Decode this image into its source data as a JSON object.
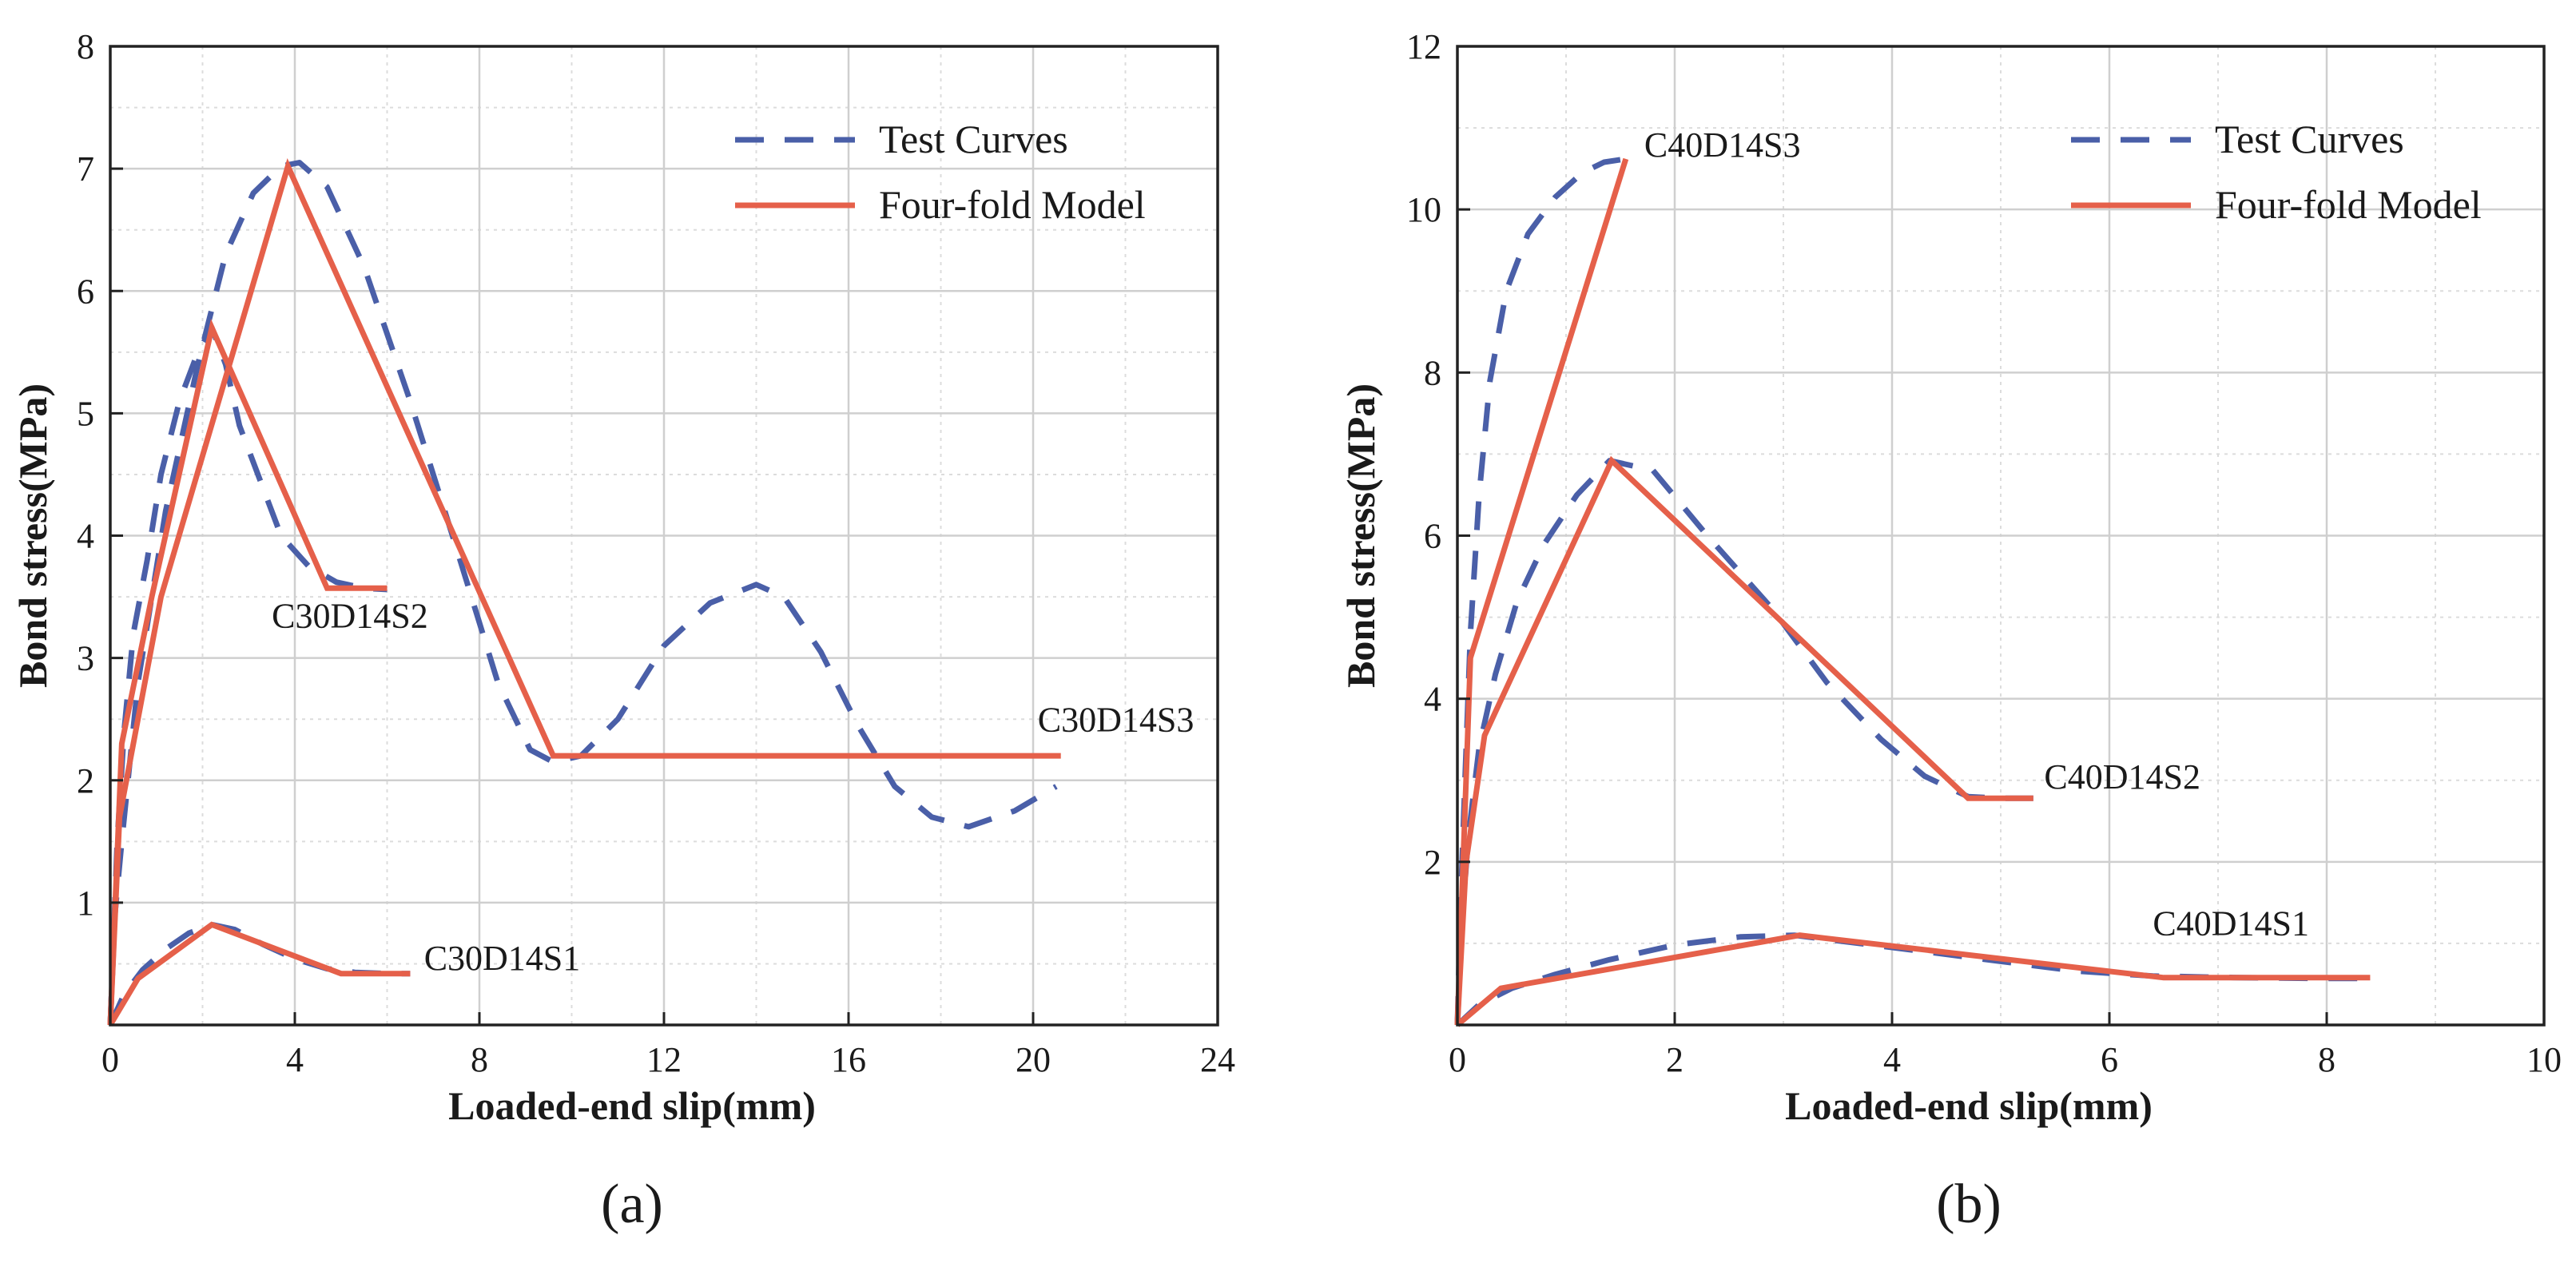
{
  "chart_data": [
    {
      "type": "line",
      "panel_label": "(a)",
      "xlabel": "Loaded-end slip(mm)",
      "ylabel": "Bond stress(MPa)",
      "xlim": [
        0,
        24
      ],
      "ylim": [
        0,
        8
      ],
      "xticks": [
        0,
        4,
        8,
        12,
        16,
        20,
        24
      ],
      "yticks": [
        1,
        2,
        3,
        4,
        5,
        6,
        7,
        8
      ],
      "grid": true,
      "legend_position": "top-right",
      "legend": [
        "Test Curves",
        "Four-fold Model"
      ],
      "colors": {
        "test": "#4a5fa8",
        "model": "#e5604a",
        "grid": "#cfcfcf"
      },
      "annotations": [
        {
          "text": "C30D14S3",
          "x": 20.1,
          "y": 2.4
        },
        {
          "text": "C30D14S2",
          "x": 3.5,
          "y": 3.25
        },
        {
          "text": "C30D14S1",
          "x": 6.8,
          "y": 0.45
        }
      ],
      "series": [
        {
          "specimen": "C30D14S1",
          "kind": "test",
          "x": [
            0,
            0.3,
            0.7,
            1.2,
            1.7,
            2.2,
            2.7,
            3.3,
            4.0,
            4.7,
            5.3,
            6.0,
            6.5
          ],
          "y": [
            0,
            0.25,
            0.45,
            0.62,
            0.75,
            0.82,
            0.78,
            0.66,
            0.54,
            0.46,
            0.43,
            0.42,
            0.42
          ]
        },
        {
          "specimen": "C30D14S1",
          "kind": "model",
          "x": [
            0,
            0.6,
            2.2,
            5.0,
            6.5
          ],
          "y": [
            0,
            0.38,
            0.82,
            0.42,
            0.42
          ]
        },
        {
          "specimen": "C30D14S2",
          "kind": "test",
          "x": [
            0,
            0.15,
            0.3,
            0.5,
            0.8,
            1.1,
            1.5,
            1.9,
            2.2,
            2.5,
            2.8,
            3.2,
            3.7,
            4.3,
            4.9,
            5.5,
            6.0
          ],
          "y": [
            0,
            1.5,
            2.4,
            3.2,
            3.8,
            4.5,
            5.1,
            5.5,
            5.7,
            5.4,
            4.9,
            4.5,
            4.0,
            3.75,
            3.62,
            3.57,
            3.56
          ]
        },
        {
          "specimen": "C30D14S2",
          "kind": "model",
          "x": [
            0,
            0.25,
            0.9,
            2.2,
            4.7,
            6.0
          ],
          "y": [
            0,
            2.3,
            3.5,
            5.7,
            3.57,
            3.57
          ]
        },
        {
          "specimen": "C30D14S3",
          "kind": "test",
          "x": [
            0,
            0.1,
            0.25,
            0.6,
            1.2,
            1.9,
            2.5,
            3.1,
            3.7,
            4.1,
            4.7,
            5.5,
            6.5,
            7.5,
            8.4,
            9.1,
            9.6,
            10.2,
            11.0,
            12.0,
            13.0,
            14.0,
            14.6,
            15.4,
            16.2,
            17.0,
            17.8,
            18.6,
            19.6,
            20.5
          ],
          "y": [
            0,
            0.9,
            1.5,
            2.8,
            4.2,
            5.4,
            6.3,
            6.8,
            7.02,
            7.05,
            6.85,
            6.2,
            5.1,
            3.9,
            2.8,
            2.25,
            2.15,
            2.2,
            2.5,
            3.1,
            3.45,
            3.6,
            3.5,
            3.05,
            2.45,
            1.95,
            1.7,
            1.62,
            1.75,
            1.95
          ]
        },
        {
          "specimen": "C30D14S3",
          "kind": "model",
          "x": [
            0,
            0.2,
            1.1,
            3.85,
            9.6,
            20.6
          ],
          "y": [
            0,
            1.7,
            3.5,
            7.02,
            2.2,
            2.2
          ]
        }
      ]
    },
    {
      "type": "line",
      "panel_label": "(b)",
      "xlabel": "Loaded-end slip(mm)",
      "ylabel": "Bond stress(MPa)",
      "xlim": [
        0,
        10
      ],
      "ylim": [
        0,
        12
      ],
      "xticks": [
        0,
        2,
        4,
        6,
        8,
        10
      ],
      "yticks": [
        2,
        4,
        6,
        8,
        10,
        12
      ],
      "grid": true,
      "legend_position": "top-right",
      "legend": [
        "Test Curves",
        "Four-fold Model"
      ],
      "colors": {
        "test": "#4a5fa8",
        "model": "#e5604a",
        "grid": "#cfcfcf"
      },
      "annotations": [
        {
          "text": "C40D14S3",
          "x": 1.72,
          "y": 10.65
        },
        {
          "text": "C40D14S2",
          "x": 5.4,
          "y": 2.9
        },
        {
          "text": "C40D14S1",
          "x": 6.4,
          "y": 1.1
        }
      ],
      "series": [
        {
          "specimen": "C40D14S1",
          "kind": "test",
          "x": [
            0,
            0.2,
            0.5,
            0.9,
            1.4,
            2.0,
            2.6,
            3.1,
            3.7,
            4.3,
            5.0,
            5.7,
            6.4,
            7.2,
            8.0,
            8.4
          ],
          "y": [
            0,
            0.25,
            0.45,
            0.62,
            0.8,
            0.98,
            1.08,
            1.1,
            1.0,
            0.9,
            0.78,
            0.66,
            0.6,
            0.58,
            0.57,
            0.57
          ]
        },
        {
          "specimen": "C40D14S1",
          "kind": "model",
          "x": [
            0,
            0.4,
            3.15,
            6.5,
            8.4
          ],
          "y": [
            0,
            0.45,
            1.1,
            0.58,
            0.58
          ]
        },
        {
          "specimen": "C40D14S2",
          "kind": "test",
          "x": [
            0,
            0.04,
            0.1,
            0.2,
            0.35,
            0.55,
            0.8,
            1.1,
            1.4,
            1.8,
            2.3,
            2.9,
            3.4,
            3.9,
            4.3,
            4.7,
            5.0,
            5.3
          ],
          "y": [
            0,
            1.2,
            2.3,
            3.4,
            4.3,
            5.2,
            5.9,
            6.5,
            6.92,
            6.8,
            6.0,
            5.1,
            4.2,
            3.5,
            3.05,
            2.8,
            2.78,
            2.78
          ]
        },
        {
          "specimen": "C40D14S2",
          "kind": "model",
          "x": [
            0,
            0.08,
            0.25,
            1.42,
            4.7,
            5.3
          ],
          "y": [
            0,
            2.0,
            3.55,
            6.92,
            2.78,
            2.78
          ]
        },
        {
          "specimen": "C40D14S3",
          "kind": "test",
          "x": [
            0,
            0.03,
            0.07,
            0.12,
            0.2,
            0.3,
            0.45,
            0.65,
            0.9,
            1.15,
            1.35,
            1.55
          ],
          "y": [
            0,
            1.5,
            3.0,
            4.8,
            6.5,
            7.9,
            9.0,
            9.7,
            10.15,
            10.45,
            10.58,
            10.62
          ]
        },
        {
          "specimen": "C40D14S3",
          "kind": "model",
          "x": [
            0,
            0.12,
            1.55
          ],
          "y": [
            0,
            4.5,
            10.62
          ]
        }
      ]
    }
  ]
}
